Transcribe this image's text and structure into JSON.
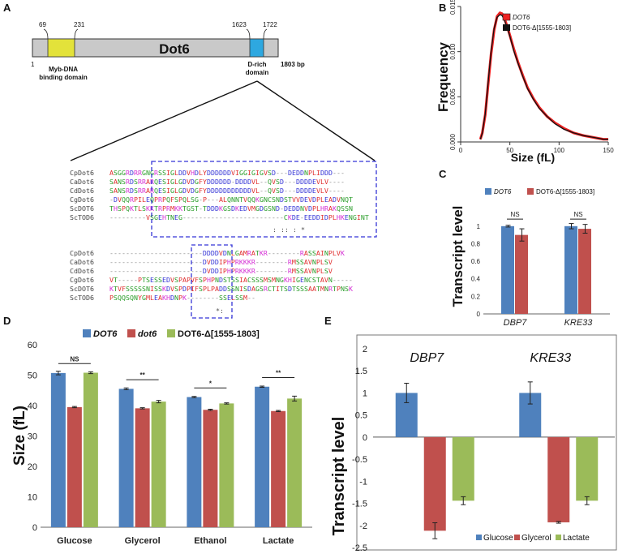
{
  "colors": {
    "blue": "#4f81bd",
    "red": "#c0504d",
    "green": "#9bbb59",
    "yellow": "#e3e23a",
    "cyan": "#2ea8e0",
    "gray": "#c9c9c9",
    "dashed": "#3535d6"
  },
  "panel_labels": [
    "A",
    "B",
    "C",
    "D",
    "E"
  ],
  "panelA": {
    "protein": "Dot6",
    "start": "1",
    "end": "1803 bp",
    "myb_start": "69",
    "myb_end": "231",
    "drich_start": "1623",
    "drich_end": "1722",
    "myb_label_1": "Myb-DNA",
    "myb_label_2": "binding domain",
    "drich_label_1": "D-rich",
    "drich_label_2": "domain",
    "block1": {
      "names": [
        "CpDot6",
        "CaDot6",
        "CdDot6",
        "CgDot6",
        "ScDOT6",
        "ScTOD6"
      ],
      "seqs": [
        "ASGGRDRRGNGRSSIGLDDVHDLYDDDDDDVIGGIGIGVSD---DEDDNPLIDDD---",
        "SANSRDSRRARQESIGLGDVDGFYDDDDDD-DDDDVL--QVSD---DDDDEVLV----",
        "SANSRDSRRARQESIGLGDVDGFYDDDDDDDDDDDVL--QVSD---DDDDEVLV----",
        "-DVQQRPILEQPRPQFSPQLSG-P---ALQNNTVQQKGNCSNDSTVVDEVDPLEADVNQT",
        "THSPQKTLSKKTRPRMKKTGST-TDDDKGSDKEDVMGDGSND-DEDDNVDPLHRAKQSSN",
        "---------VSGEHTNEG-------------------------CKDE-EEDDIDPLHKENGINT"
      ],
      "consensus": ":       :: :  *"
    },
    "block2": {
      "names": [
        "CpDot6",
        "CaDot6",
        "CdDot6",
        "CgDot6",
        "ScDOT6",
        "ScTOD6"
      ],
      "seqs": [
        "-----------------------DDDDVDNLGAMRATKR--------RASSAINPLVK",
        "-----------------------DVDDIPHPRKKKR--------RMSSAVNPLSV",
        "-----------------------DVDDIPHPRKKKR--------RMSSAVNPLSV",
        "VT-----PTSESSEDVSPAPVFSPHPNDSTSSIACSSSMSMNGKHIGENCSTAVN-----",
        "KTVFSSSSSNISSKDVSPDPIFSPLPADDSSNISDAGSRCTITSDTSSSAATMNRTPNSK",
        "PSQQSQNYGMLEAKHDNPK--------SSELSSM--"
      ],
      "consensus": "*:"
    }
  },
  "chart_data": [
    {
      "panel": "B",
      "type": "line",
      "xlabel": "Size (fL)",
      "ylabel": "Frequency",
      "xlim": [
        0,
        150
      ],
      "ylim": [
        0,
        0.015
      ],
      "xticks": [
        "0",
        "50",
        "100",
        "150"
      ],
      "yticks": [
        "0.000",
        "0.005",
        "0.010",
        "0.015"
      ],
      "legend": [
        "DOT6",
        "DOT6-Δ[1555-1803]"
      ],
      "series": [
        {
          "name": "DOT6",
          "x": [
            20,
            22,
            25,
            28,
            31,
            34,
            37,
            40,
            42,
            44,
            47,
            50,
            54,
            58,
            63,
            68,
            74,
            80,
            88,
            96,
            105,
            115,
            125,
            135,
            145,
            150
          ],
          "y": [
            0.0003,
            0.001,
            0.003,
            0.0065,
            0.0098,
            0.0124,
            0.0139,
            0.0143,
            0.0142,
            0.0138,
            0.0129,
            0.0118,
            0.0103,
            0.0089,
            0.0074,
            0.006,
            0.0048,
            0.0038,
            0.0028,
            0.0021,
            0.0015,
            0.001,
            0.0007,
            0.0005,
            0.0003,
            0.0003
          ]
        },
        {
          "name": "DOT6-Δ[1555-1803]",
          "x": [
            20,
            22,
            25,
            28,
            31,
            34,
            37,
            40,
            42,
            44,
            47,
            50,
            54,
            58,
            63,
            68,
            74,
            80,
            88,
            96,
            105,
            115,
            125,
            135,
            145,
            150
          ],
          "y": [
            0.0003,
            0.001,
            0.0031,
            0.0067,
            0.0101,
            0.0126,
            0.0138,
            0.0141,
            0.014,
            0.0136,
            0.0128,
            0.0117,
            0.0101,
            0.0088,
            0.0073,
            0.0059,
            0.0047,
            0.0037,
            0.0028,
            0.002,
            0.0014,
            0.001,
            0.0007,
            0.0005,
            0.0003,
            0.0003
          ]
        }
      ]
    },
    {
      "panel": "C",
      "type": "bar",
      "ylabel": "Transcript level",
      "ylim": [
        0,
        1.1
      ],
      "yticks": [
        "0",
        "0.2",
        "0.4",
        "0.6",
        "0.8",
        "1"
      ],
      "categories": [
        "DBP7",
        "KRE33"
      ],
      "legend": [
        "DOT6",
        "DOT6-Δ[1555-1803]"
      ],
      "series": [
        {
          "name": "DOT6",
          "values": [
            1.0,
            1.0
          ],
          "errors": [
            0.01,
            0.03
          ]
        },
        {
          "name": "DOT6-Δ[1555-1803]",
          "values": [
            0.9,
            0.97
          ],
          "errors": [
            0.07,
            0.05
          ]
        }
      ],
      "annotations": [
        "NS",
        "NS"
      ]
    },
    {
      "panel": "D",
      "type": "bar",
      "ylabel": "Size (fL)",
      "ylim": [
        0,
        60
      ],
      "yticks": [
        "0",
        "10",
        "20",
        "30",
        "40",
        "50",
        "60"
      ],
      "categories": [
        "Glucose",
        "Glycerol",
        "Ethanol",
        "Lactate"
      ],
      "legend": [
        "DOT6",
        "dot6",
        "DOT6-Δ[1555-1803]"
      ],
      "series": [
        {
          "name": "DOT6",
          "values": [
            50.7,
            45.5,
            42.8,
            46.2
          ],
          "errors": [
            0.6,
            0.3,
            0.2,
            0.2
          ]
        },
        {
          "name": "dot6",
          "values": [
            39.5,
            39.1,
            38.6,
            38.2
          ],
          "errors": [
            0.2,
            0.2,
            0.2,
            0.2
          ]
        },
        {
          "name": "DOT6-Δ[1555-1803]",
          "values": [
            50.8,
            41.3,
            40.7,
            42.3
          ],
          "errors": [
            0.3,
            0.4,
            0.2,
            0.8
          ]
        }
      ],
      "annotations": [
        "NS",
        "**",
        "*",
        "**"
      ]
    },
    {
      "panel": "E",
      "type": "bar",
      "ylabel": "Transcript level",
      "ylim": [
        -2.5,
        2
      ],
      "yticks": [
        "-2.5",
        "-2",
        "-1.5",
        "-1",
        "-0.5",
        "0",
        "0.5",
        "1",
        "1.5",
        "2"
      ],
      "categories": [
        "DBP7",
        "KRE33"
      ],
      "legend": [
        "Glucose",
        "Glycerol",
        "Lactate"
      ],
      "series": [
        {
          "name": "Glucose",
          "values": [
            1.0,
            1.0
          ],
          "errors": [
            0.22,
            0.25
          ]
        },
        {
          "name": "Glycerol",
          "values": [
            -2.12,
            -1.93
          ],
          "errors": [
            0.18,
            0.02
          ]
        },
        {
          "name": "Lactate",
          "values": [
            -1.44,
            -1.44
          ],
          "errors": [
            0.09,
            0.09
          ]
        }
      ]
    }
  ]
}
